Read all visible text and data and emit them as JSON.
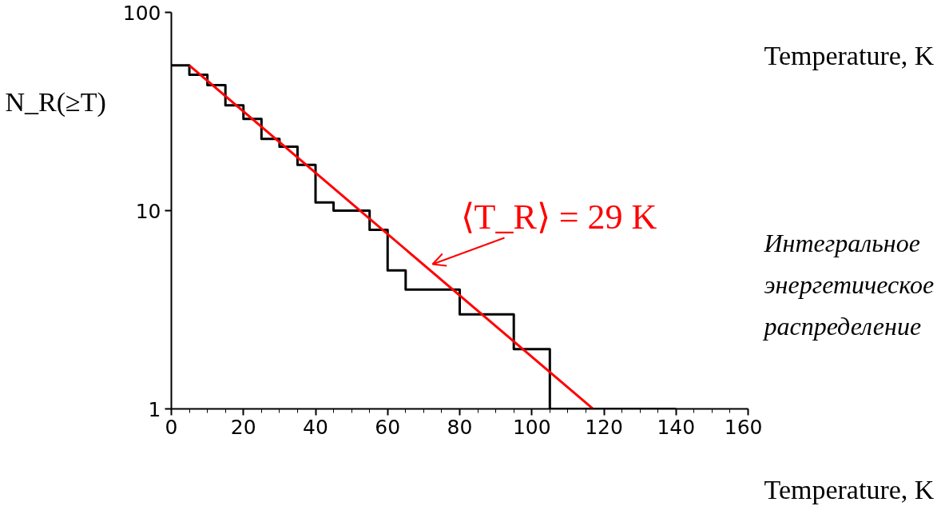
{
  "chart_data": {
    "type": "step",
    "title": "Temperature, K",
    "xlabel": "Temperature, K",
    "ylabel": "N_R(≥T)",
    "x": [
      0,
      5,
      10,
      15,
      20,
      25,
      30,
      35,
      40,
      45,
      55,
      60,
      65,
      80,
      95,
      105,
      140
    ],
    "series": [
      {
        "color": "#000000",
        "values": [
          54,
          48.5,
          43,
          34,
          29,
          23,
          21,
          17,
          11,
          10,
          8,
          5,
          4,
          3,
          2,
          1,
          1
        ]
      },
      {
        "type": "line",
        "color": "#ff0000",
        "x": [
          5,
          117
        ],
        "values": [
          54,
          1
        ]
      }
    ],
    "annotations": [
      "⟨T_R⟩ = 29 K",
      "Интегральное\nэнергетическое\nраспределение"
    ],
    "xlim": [
      0,
      160
    ],
    "xticks": [
      0,
      20,
      40,
      60,
      80,
      100,
      120,
      140,
      160
    ],
    "ylim": [
      1,
      100
    ],
    "yticks": [
      1,
      10,
      100
    ],
    "log": "y",
    "grid": false
  }
}
